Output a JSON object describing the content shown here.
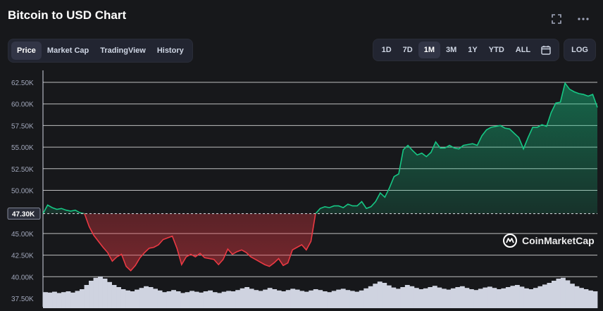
{
  "header": {
    "title": "Bitcoin to USD Chart"
  },
  "tabs": [
    {
      "label": "Price",
      "active": true
    },
    {
      "label": "Market Cap",
      "active": false
    },
    {
      "label": "TradingView",
      "active": false
    },
    {
      "label": "History",
      "active": false
    }
  ],
  "ranges": [
    {
      "label": "1D",
      "active": false
    },
    {
      "label": "7D",
      "active": false
    },
    {
      "label": "1M",
      "active": true
    },
    {
      "label": "3M",
      "active": false
    },
    {
      "label": "1Y",
      "active": false
    },
    {
      "label": "YTD",
      "active": false
    },
    {
      "label": "ALL",
      "active": false
    }
  ],
  "log_label": "LOG",
  "watermark": "CoinMarketCap",
  "colors": {
    "up": "#16c784",
    "down": "#ea3943",
    "grid": "#dcdcdc",
    "background": "#17181b",
    "volume": "#cfd3e0"
  },
  "chart_data": {
    "type": "line",
    "ylim": [
      37500,
      62500
    ],
    "y_ticks": [
      "62.50K",
      "60.00K",
      "57.50K",
      "55.00K",
      "52.50K",
      "50.00K",
      "45.00K",
      "42.50K",
      "40.00K",
      "37.50K"
    ],
    "y_tick_values": [
      62500,
      60000,
      57500,
      55000,
      52500,
      50000,
      45000,
      42500,
      40000,
      37500
    ],
    "baseline": {
      "value": 47300,
      "label": "47.30K"
    },
    "series": [
      {
        "values": [
          47300,
          48300,
          48000,
          47800,
          47900,
          47700,
          47600,
          47700,
          47400,
          47300,
          45800,
          44800,
          44100,
          43400,
          42800,
          41800,
          42300,
          42600,
          41200,
          40700,
          41300,
          42200,
          42800,
          43300,
          43400,
          43700,
          44300,
          44500,
          44700,
          43300,
          41400,
          42300,
          42600,
          42300,
          42700,
          42200,
          42100,
          42000,
          41400,
          42000,
          43200,
          42600,
          42900,
          43100,
          42800,
          42300,
          42000,
          41700,
          41400,
          41200,
          41600,
          42100,
          41300,
          41600,
          43100,
          43400,
          43700,
          43100,
          44100,
          47300,
          47900,
          48100,
          48000,
          48200,
          48200,
          48000,
          48400,
          48200,
          48200,
          48700,
          47900,
          48100,
          48700,
          49700,
          49200,
          50300,
          51600,
          51900,
          54700,
          55200,
          54600,
          54100,
          54300,
          53900,
          54400,
          55600,
          54900,
          54900,
          55200,
          54900,
          54800,
          55200,
          55300,
          55400,
          55200,
          56300,
          57000,
          57300,
          57400,
          57500,
          57200,
          57100,
          56600,
          56100,
          54800,
          56100,
          57300,
          57300,
          57600,
          57400,
          59000,
          60100,
          60200,
          62400,
          61700,
          61400,
          61200,
          61100,
          60900,
          61100,
          59600
        ],
        "volume": [
          0.38,
          0.37,
          0.39,
          0.36,
          0.38,
          0.4,
          0.37,
          0.41,
          0.45,
          0.55,
          0.65,
          0.72,
          0.75,
          0.7,
          0.62,
          0.55,
          0.5,
          0.45,
          0.42,
          0.4,
          0.44,
          0.48,
          0.52,
          0.5,
          0.46,
          0.42,
          0.38,
          0.4,
          0.43,
          0.4,
          0.36,
          0.38,
          0.41,
          0.39,
          0.37,
          0.4,
          0.42,
          0.38,
          0.36,
          0.39,
          0.41,
          0.4,
          0.43,
          0.47,
          0.5,
          0.46,
          0.43,
          0.41,
          0.44,
          0.48,
          0.45,
          0.42,
          0.4,
          0.43,
          0.46,
          0.44,
          0.41,
          0.39,
          0.42,
          0.45,
          0.43,
          0.4,
          0.38,
          0.41,
          0.44,
          0.46,
          0.43,
          0.41,
          0.39,
          0.42,
          0.47,
          0.52,
          0.58,
          0.63,
          0.6,
          0.54,
          0.49,
          0.46,
          0.5,
          0.55,
          0.52,
          0.48,
          0.45,
          0.47,
          0.5,
          0.53,
          0.49,
          0.46,
          0.44,
          0.47,
          0.5,
          0.52,
          0.48,
          0.45,
          0.43,
          0.46,
          0.49,
          0.51,
          0.48,
          0.45,
          0.47,
          0.5,
          0.53,
          0.55,
          0.51,
          0.47,
          0.45,
          0.48,
          0.52,
          0.56,
          0.6,
          0.65,
          0.7,
          0.72,
          0.66,
          0.58,
          0.52,
          0.48,
          0.45,
          0.42,
          0.4
        ]
      }
    ]
  }
}
